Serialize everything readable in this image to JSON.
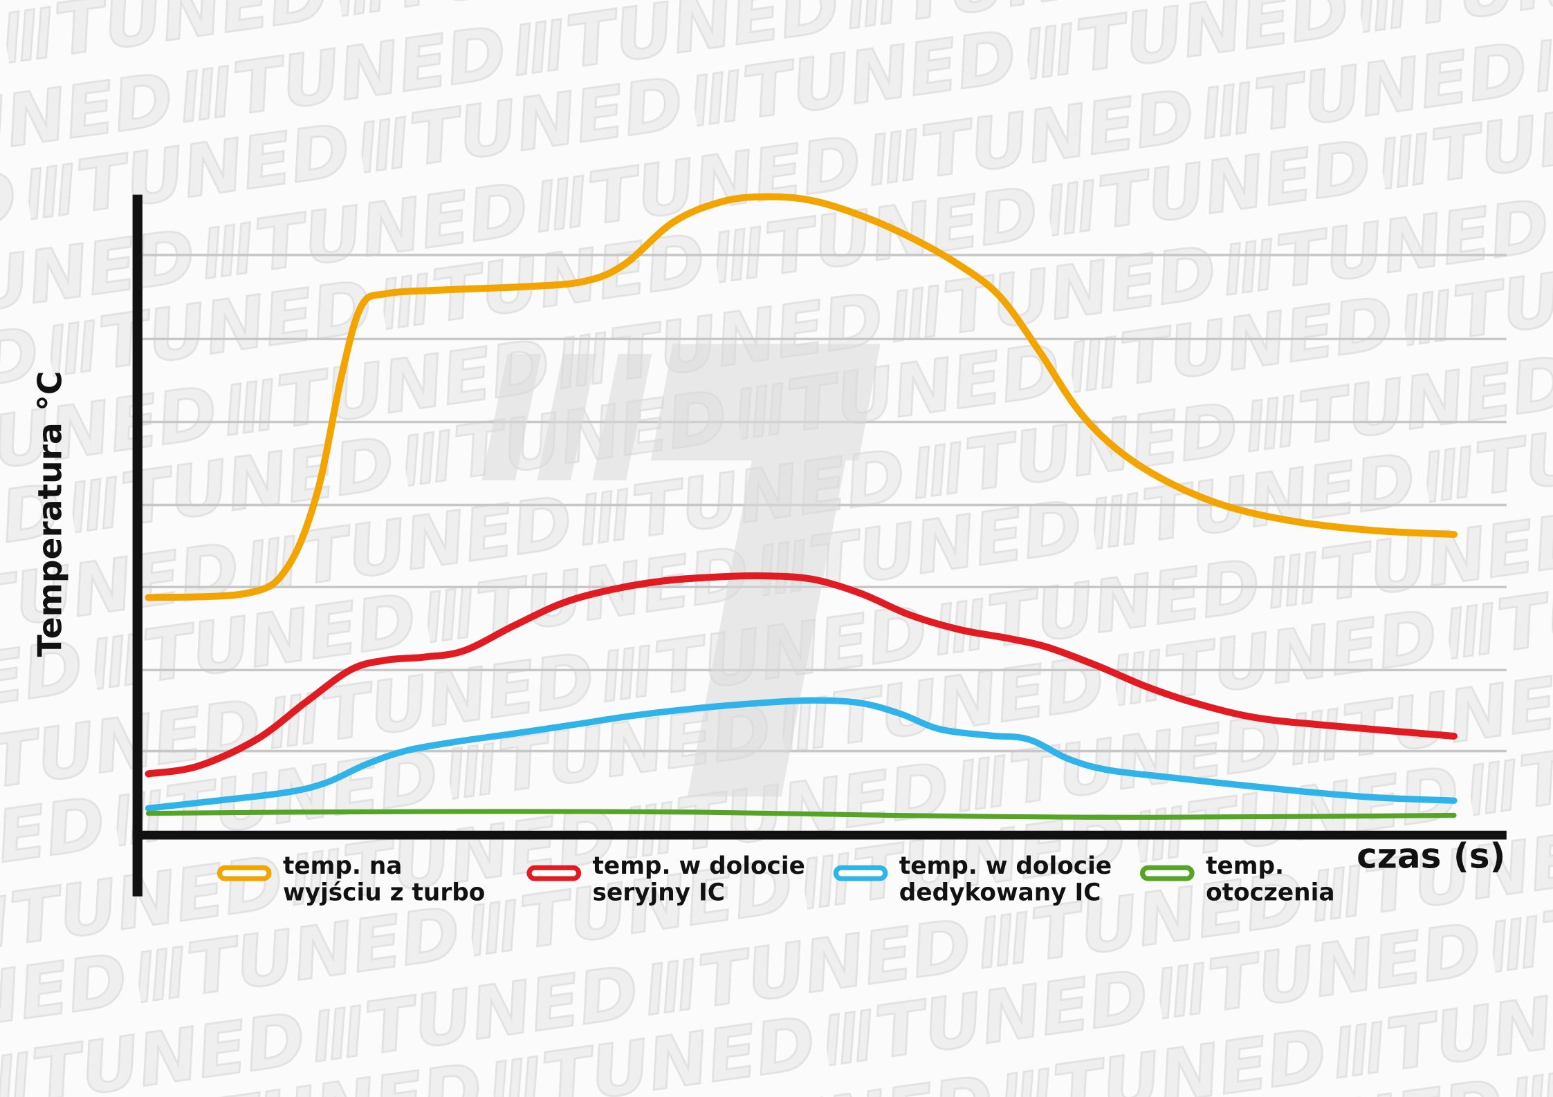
{
  "page": {
    "background_color": "#fbfbfb",
    "watermark_text": "TUNED",
    "watermark_color": "#ececec"
  },
  "chart_data": {
    "type": "line",
    "title": "",
    "xlabel": "czas (s)",
    "ylabel": "Temperatura °C",
    "grid": "horizontal",
    "axis_ticks_visible": false,
    "value_scale_note": "axes have no numeric tick labels; values are percent of plot height (0 = x-axis, 100 = highest point of orange curve), x is percent of time span",
    "xlim": [
      0,
      100
    ],
    "ylim": [
      0,
      100
    ],
    "series": [
      {
        "name": "temp. na wyjściu z turbo",
        "color": "#F2A400",
        "points": [
          [
            0,
            37.2
          ],
          [
            7.6,
            37.9
          ],
          [
            10.6,
            41.8
          ],
          [
            12.9,
            53.4
          ],
          [
            14.8,
            72.0
          ],
          [
            16.3,
            82.8
          ],
          [
            18.2,
            84.8
          ],
          [
            22.7,
            85.4
          ],
          [
            28.8,
            85.9
          ],
          [
            33.3,
            86.7
          ],
          [
            36.4,
            89.3
          ],
          [
            40.2,
            96.0
          ],
          [
            43.9,
            99.2
          ],
          [
            47.3,
            100.0
          ],
          [
            50.8,
            99.4
          ],
          [
            54.5,
            97.1
          ],
          [
            58.3,
            93.7
          ],
          [
            62.1,
            89.3
          ],
          [
            65.2,
            84.4
          ],
          [
            68.2,
            75.9
          ],
          [
            71.2,
            66.6
          ],
          [
            74.2,
            60.4
          ],
          [
            78.0,
            55.4
          ],
          [
            82.6,
            51.5
          ],
          [
            87.9,
            49.1
          ],
          [
            93.9,
            47.7
          ],
          [
            100,
            47.1
          ]
        ]
      },
      {
        "name": "temp. w dolocie seryjny IC",
        "color": "#E01B22",
        "points": [
          [
            0,
            9.6
          ],
          [
            3.8,
            10.8
          ],
          [
            8.3,
            15.0
          ],
          [
            12.1,
            20.9
          ],
          [
            15.5,
            25.9
          ],
          [
            18.2,
            27.4
          ],
          [
            21.2,
            27.9
          ],
          [
            24.2,
            28.9
          ],
          [
            28.0,
            32.8
          ],
          [
            31.8,
            36.4
          ],
          [
            35.6,
            38.5
          ],
          [
            39.4,
            39.8
          ],
          [
            43.2,
            40.4
          ],
          [
            47.0,
            40.6
          ],
          [
            50.8,
            40.1
          ],
          [
            54.5,
            37.9
          ],
          [
            58.3,
            34.5
          ],
          [
            62.1,
            32.2
          ],
          [
            65.9,
            30.8
          ],
          [
            68.9,
            29.4
          ],
          [
            72.7,
            26.5
          ],
          [
            76.5,
            23.2
          ],
          [
            80.3,
            20.6
          ],
          [
            84.8,
            18.4
          ],
          [
            90.2,
            17.2
          ],
          [
            100,
            15.5
          ]
        ]
      },
      {
        "name": "temp. w dolocie dedykowany IC",
        "color": "#2FB3E8",
        "points": [
          [
            0,
            4.2
          ],
          [
            5.3,
            5.4
          ],
          [
            10.6,
            6.7
          ],
          [
            13.6,
            8.2
          ],
          [
            16.7,
            11.1
          ],
          [
            19.7,
            13.2
          ],
          [
            23.5,
            14.6
          ],
          [
            28.0,
            15.9
          ],
          [
            32.6,
            17.3
          ],
          [
            37.1,
            18.7
          ],
          [
            41.7,
            19.8
          ],
          [
            46.2,
            20.6
          ],
          [
            50.8,
            21.1
          ],
          [
            54.5,
            20.7
          ],
          [
            57.6,
            19.0
          ],
          [
            60.6,
            16.6
          ],
          [
            64.4,
            15.6
          ],
          [
            67.4,
            15.0
          ],
          [
            70.5,
            11.9
          ],
          [
            73.5,
            10.2
          ],
          [
            78.0,
            9.1
          ],
          [
            83.3,
            7.9
          ],
          [
            88.6,
            6.8
          ],
          [
            93.9,
            5.9
          ],
          [
            100,
            5.4
          ]
        ]
      },
      {
        "name": "temp. otoczenia",
        "color": "#55A428",
        "points": [
          [
            0,
            3.4
          ],
          [
            11.4,
            3.6
          ],
          [
            26.5,
            3.7
          ],
          [
            41.7,
            3.6
          ],
          [
            56.8,
            3.1
          ],
          [
            72.0,
            2.8
          ],
          [
            87.1,
            2.9
          ],
          [
            100,
            3.1
          ]
        ]
      }
    ]
  },
  "axes": {
    "x_label": "czas (s)",
    "y_label": "Temperatura °C",
    "gridline_count": 7
  },
  "legend": {
    "items": [
      {
        "line1": "temp. na",
        "line2": "wyjściu z turbo"
      },
      {
        "line1": "temp. w dolocie",
        "line2": "seryjny IC"
      },
      {
        "line1": "temp. w dolocie",
        "line2": "dedykowany IC"
      },
      {
        "line1": "temp.",
        "line2": "otoczenia"
      }
    ]
  }
}
